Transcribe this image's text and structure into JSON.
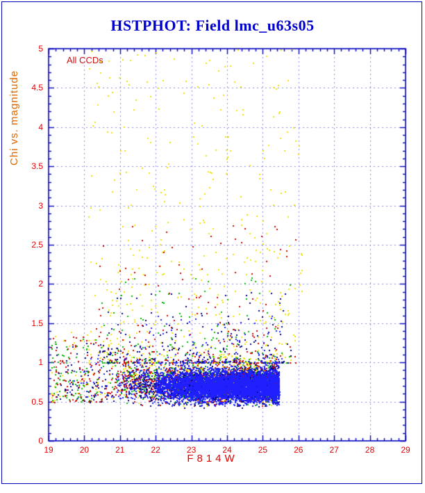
{
  "figure": {
    "title": "HSTPHOT: Field lmc_u63s05",
    "annotation": "All CCDs"
  },
  "colors": {
    "frame": "#0000bb",
    "grid": "#8888e0",
    "tick_labels": "#e00000",
    "title": "#0000cc",
    "xlabel": "#e00000",
    "ylabel": "#dd6600"
  },
  "chart_data": {
    "type": "scatter",
    "title": "HSTPHOT: Field lmc_u63s05",
    "annotation": "All CCDs",
    "xlabel": "F814W",
    "ylabel": "Chi vs. magnitude",
    "xlim": [
      19,
      29
    ],
    "ylim": [
      0,
      5
    ],
    "x_ticks": [
      19,
      20,
      21,
      22,
      23,
      24,
      25,
      26,
      27,
      28,
      29
    ],
    "x_tick_labels": [
      "19",
      "20",
      "21",
      "22",
      "23",
      "24",
      "25",
      "26",
      "27",
      "28",
      "29"
    ],
    "y_ticks": [
      0,
      0.5,
      1,
      1.5,
      2,
      2.5,
      3,
      3.5,
      4,
      4.5,
      5
    ],
    "y_tick_labels": [
      "0",
      "0.5",
      "1",
      "1.5",
      "2",
      "2.5",
      "3",
      "3.5",
      "4",
      "4.5",
      "5"
    ],
    "x_minor_step": 0.2,
    "y_minor_step": 0.1,
    "grid": "dashed",
    "legend": "none",
    "point_size": 2,
    "seed": 20240601,
    "description": "Photometric quality plot: chi of PSF fit vs F814W magnitude for all CCDs; dense locus at chi 0.5-1.0 between mag 21-25.5 with sharp faint-end cutoff at ~25.5, sparse high-chi outliers (mostly yellow) up to chi 5 between mag 20-26.",
    "series": [
      {
        "name": "ccd-yellow",
        "color": "#f0e000",
        "clusters": [
          {
            "n": 650,
            "x": [
              20.8,
              25.4
            ],
            "xpow": 0.65,
            "y_center": 0.75,
            "y_sigma": 0.15,
            "y_clip": [
              0.45,
              1.25
            ]
          },
          {
            "n": 430,
            "x": [
              20.1,
              26.1
            ],
            "xpow": 1.0,
            "y_range": [
              1.0,
              5.0
            ],
            "ypow": 2.0
          },
          {
            "n": 55,
            "x": [
              19.05,
              20.8
            ],
            "xpow": 1.0,
            "y_range": [
              0.5,
              1.4
            ],
            "ypow": 1.5
          }
        ]
      },
      {
        "name": "ccd-green",
        "color": "#00b400",
        "clusters": [
          {
            "n": 900,
            "x": [
              20.6,
              25.42
            ],
            "xpow": 0.6,
            "y_center": 0.73,
            "y_sigma": 0.12,
            "y_clip": [
              0.45,
              1.15
            ]
          },
          {
            "n": 150,
            "x": [
              20.4,
              25.8
            ],
            "xpow": 1.0,
            "y_range": [
              1.0,
              2.1
            ],
            "ypow": 2.6
          },
          {
            "n": 85,
            "x": [
              19.05,
              20.6
            ],
            "xpow": 1.0,
            "y_range": [
              0.5,
              1.3
            ],
            "ypow": 1.4
          }
        ]
      },
      {
        "name": "ccd-red",
        "color": "#d00000",
        "clusters": [
          {
            "n": 900,
            "x": [
              20.5,
              25.42
            ],
            "xpow": 0.6,
            "y_center": 0.74,
            "y_sigma": 0.13,
            "y_clip": [
              0.45,
              1.2
            ]
          },
          {
            "n": 190,
            "x": [
              20.3,
              26.0
            ],
            "xpow": 1.0,
            "y_range": [
              1.0,
              2.8
            ],
            "ypow": 3.0
          },
          {
            "n": 95,
            "x": [
              19.05,
              20.5
            ],
            "xpow": 1.0,
            "y_range": [
              0.5,
              1.35
            ],
            "ypow": 1.4
          }
        ]
      },
      {
        "name": "ccd-navy",
        "color": "#000080",
        "clusters": [
          {
            "n": 1500,
            "x": [
              21.0,
              25.45
            ],
            "xpow": 0.55,
            "y_center": 0.71,
            "y_sigma": 0.11,
            "y_clip": [
              0.42,
              1.1
            ]
          },
          {
            "n": 200,
            "x": [
              20.5,
              25.8
            ],
            "xpow": 1.0,
            "y_range": [
              1.0,
              1.9
            ],
            "ypow": 2.8
          },
          {
            "n": 70,
            "x": [
              19.2,
              21.0
            ],
            "xpow": 1.0,
            "y_range": [
              0.5,
              1.25
            ],
            "ypow": 1.4
          }
        ]
      },
      {
        "name": "ccd-blue",
        "color": "#2020ff",
        "clusters": [
          {
            "n": 4200,
            "x": [
              22.0,
              25.45
            ],
            "xpow": 0.7,
            "y_center": 0.7,
            "y_sigma": 0.09,
            "y_clip": [
              0.45,
              1.05
            ]
          },
          {
            "n": 1300,
            "x": [
              20.8,
              25.45
            ],
            "xpow": 0.6,
            "y_center": 0.73,
            "y_sigma": 0.12,
            "y_clip": [
              0.45,
              1.15
            ]
          },
          {
            "n": 110,
            "x": [
              21.5,
              25.6
            ],
            "xpow": 1.0,
            "y_range": [
              1.0,
              1.6
            ],
            "ypow": 2.8
          },
          {
            "n": 45,
            "x": [
              19.5,
              21.2
            ],
            "xpow": 1.0,
            "y_range": [
              0.55,
              1.15
            ],
            "ypow": 1.3
          }
        ]
      }
    ]
  }
}
